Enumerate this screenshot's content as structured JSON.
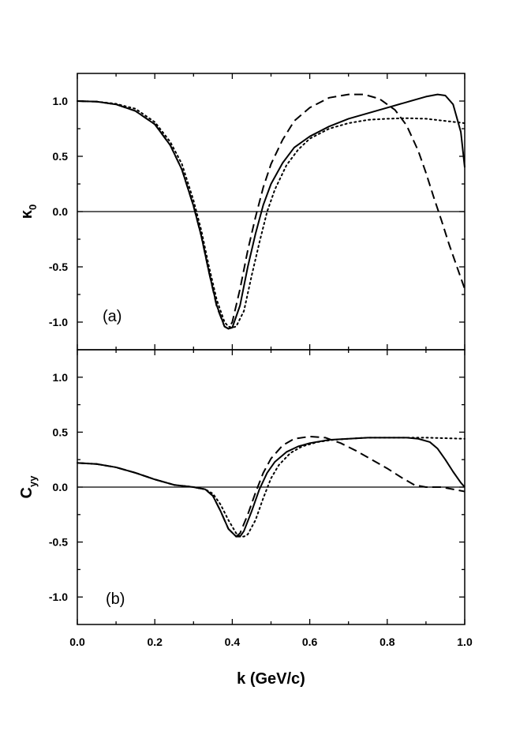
{
  "chart_data": [
    {
      "type": "line",
      "panel_label": "(a)",
      "ylabel_main": "κ",
      "ylabel_sub": "0",
      "xlabel": "",
      "xlim": [
        0.0,
        1.0
      ],
      "ylim": [
        -1.25,
        1.25
      ],
      "x_ticks": [
        "0.0",
        "0.2",
        "0.4",
        "0.6",
        "0.8",
        "1.0"
      ],
      "y_ticks": [
        "-1.0",
        "-0.5",
        "0.0",
        "0.5",
        "1.0"
      ],
      "reference_line_y": 0.0,
      "series": [
        {
          "style": "solid",
          "points": [
            [
              0.0,
              1.0
            ],
            [
              0.05,
              0.995
            ],
            [
              0.1,
              0.97
            ],
            [
              0.15,
              0.91
            ],
            [
              0.2,
              0.79
            ],
            [
              0.24,
              0.6
            ],
            [
              0.27,
              0.38
            ],
            [
              0.3,
              0.05
            ],
            [
              0.32,
              -0.22
            ],
            [
              0.34,
              -0.55
            ],
            [
              0.36,
              -0.85
            ],
            [
              0.38,
              -1.04
            ],
            [
              0.39,
              -1.06
            ],
            [
              0.4,
              -1.05
            ],
            [
              0.42,
              -0.85
            ],
            [
              0.44,
              -0.5
            ],
            [
              0.46,
              -0.2
            ],
            [
              0.48,
              0.06
            ],
            [
              0.5,
              0.25
            ],
            [
              0.53,
              0.44
            ],
            [
              0.56,
              0.58
            ],
            [
              0.6,
              0.68
            ],
            [
              0.65,
              0.77
            ],
            [
              0.7,
              0.84
            ],
            [
              0.75,
              0.89
            ],
            [
              0.8,
              0.94
            ],
            [
              0.85,
              0.99
            ],
            [
              0.9,
              1.04
            ],
            [
              0.93,
              1.06
            ],
            [
              0.95,
              1.05
            ],
            [
              0.97,
              0.97
            ],
            [
              0.99,
              0.72
            ],
            [
              1.0,
              0.4
            ]
          ]
        },
        {
          "style": "dashed",
          "points": [
            [
              0.0,
              1.0
            ],
            [
              0.05,
              0.995
            ],
            [
              0.1,
              0.97
            ],
            [
              0.15,
              0.91
            ],
            [
              0.2,
              0.79
            ],
            [
              0.24,
              0.6
            ],
            [
              0.27,
              0.38
            ],
            [
              0.3,
              0.05
            ],
            [
              0.32,
              -0.22
            ],
            [
              0.34,
              -0.55
            ],
            [
              0.36,
              -0.86
            ],
            [
              0.38,
              -1.04
            ],
            [
              0.39,
              -1.06
            ],
            [
              0.4,
              -1.0
            ],
            [
              0.42,
              -0.7
            ],
            [
              0.44,
              -0.35
            ],
            [
              0.46,
              -0.05
            ],
            [
              0.48,
              0.22
            ],
            [
              0.5,
              0.43
            ],
            [
              0.53,
              0.65
            ],
            [
              0.56,
              0.82
            ],
            [
              0.6,
              0.94
            ],
            [
              0.65,
              1.03
            ],
            [
              0.7,
              1.06
            ],
            [
              0.74,
              1.06
            ],
            [
              0.78,
              1.02
            ],
            [
              0.82,
              0.92
            ],
            [
              0.85,
              0.78
            ],
            [
              0.88,
              0.55
            ],
            [
              0.9,
              0.35
            ],
            [
              0.92,
              0.13
            ],
            [
              0.94,
              -0.08
            ],
            [
              0.96,
              -0.3
            ],
            [
              0.98,
              -0.5
            ],
            [
              1.0,
              -0.7
            ]
          ]
        },
        {
          "style": "dotted",
          "points": [
            [
              0.0,
              1.0
            ],
            [
              0.05,
              0.995
            ],
            [
              0.1,
              0.975
            ],
            [
              0.15,
              0.93
            ],
            [
              0.2,
              0.81
            ],
            [
              0.24,
              0.63
            ],
            [
              0.27,
              0.43
            ],
            [
              0.3,
              0.1
            ],
            [
              0.32,
              -0.17
            ],
            [
              0.34,
              -0.5
            ],
            [
              0.36,
              -0.8
            ],
            [
              0.38,
              -1.0
            ],
            [
              0.39,
              -1.04
            ],
            [
              0.4,
              -1.05
            ],
            [
              0.41,
              -1.04
            ],
            [
              0.43,
              -0.9
            ],
            [
              0.45,
              -0.58
            ],
            [
              0.47,
              -0.28
            ],
            [
              0.49,
              0.0
            ],
            [
              0.51,
              0.2
            ],
            [
              0.54,
              0.42
            ],
            [
              0.57,
              0.56
            ],
            [
              0.6,
              0.66
            ],
            [
              0.65,
              0.75
            ],
            [
              0.7,
              0.8
            ],
            [
              0.75,
              0.83
            ],
            [
              0.8,
              0.84
            ],
            [
              0.85,
              0.845
            ],
            [
              0.9,
              0.84
            ],
            [
              0.95,
              0.82
            ],
            [
              1.0,
              0.8
            ]
          ]
        }
      ]
    },
    {
      "type": "line",
      "panel_label": "(b)",
      "ylabel_main": "C",
      "ylabel_sub": "yy",
      "xlabel": "k (GeV/c)",
      "xlim": [
        0.0,
        1.0
      ],
      "ylim": [
        -1.25,
        1.25
      ],
      "x_ticks": [
        "0.0",
        "0.2",
        "0.4",
        "0.6",
        "0.8",
        "1.0"
      ],
      "y_ticks": [
        "-1.0",
        "-0.5",
        "0.0",
        "0.5",
        "1.0"
      ],
      "reference_line_y": 0.0,
      "series": [
        {
          "style": "solid",
          "points": [
            [
              0.0,
              0.22
            ],
            [
              0.05,
              0.21
            ],
            [
              0.1,
              0.18
            ],
            [
              0.15,
              0.13
            ],
            [
              0.2,
              0.07
            ],
            [
              0.25,
              0.02
            ],
            [
              0.3,
              0.0
            ],
            [
              0.33,
              -0.02
            ],
            [
              0.35,
              -0.08
            ],
            [
              0.37,
              -0.22
            ],
            [
              0.39,
              -0.38
            ],
            [
              0.41,
              -0.45
            ],
            [
              0.42,
              -0.45
            ],
            [
              0.43,
              -0.4
            ],
            [
              0.45,
              -0.22
            ],
            [
              0.47,
              -0.02
            ],
            [
              0.49,
              0.13
            ],
            [
              0.51,
              0.23
            ],
            [
              0.54,
              0.32
            ],
            [
              0.57,
              0.37
            ],
            [
              0.6,
              0.4
            ],
            [
              0.65,
              0.43
            ],
            [
              0.7,
              0.44
            ],
            [
              0.75,
              0.45
            ],
            [
              0.8,
              0.45
            ],
            [
              0.85,
              0.45
            ],
            [
              0.88,
              0.44
            ],
            [
              0.91,
              0.41
            ],
            [
              0.93,
              0.35
            ],
            [
              0.95,
              0.25
            ],
            [
              0.97,
              0.14
            ],
            [
              0.99,
              0.04
            ],
            [
              1.0,
              0.0
            ]
          ]
        },
        {
          "style": "dashed",
          "points": [
            [
              0.0,
              0.22
            ],
            [
              0.05,
              0.21
            ],
            [
              0.1,
              0.18
            ],
            [
              0.15,
              0.13
            ],
            [
              0.2,
              0.07
            ],
            [
              0.25,
              0.02
            ],
            [
              0.3,
              0.0
            ],
            [
              0.33,
              -0.02
            ],
            [
              0.35,
              -0.08
            ],
            [
              0.37,
              -0.22
            ],
            [
              0.39,
              -0.38
            ],
            [
              0.41,
              -0.45
            ],
            [
              0.42,
              -0.42
            ],
            [
              0.44,
              -0.25
            ],
            [
              0.46,
              -0.05
            ],
            [
              0.48,
              0.13
            ],
            [
              0.5,
              0.26
            ],
            [
              0.53,
              0.38
            ],
            [
              0.56,
              0.44
            ],
            [
              0.6,
              0.46
            ],
            [
              0.64,
              0.45
            ],
            [
              0.68,
              0.4
            ],
            [
              0.72,
              0.33
            ],
            [
              0.76,
              0.25
            ],
            [
              0.8,
              0.17
            ],
            [
              0.84,
              0.08
            ],
            [
              0.87,
              0.02
            ],
            [
              0.9,
              0.0
            ],
            [
              0.94,
              0.0
            ],
            [
              0.97,
              -0.02
            ],
            [
              1.0,
              -0.04
            ]
          ]
        },
        {
          "style": "dotted",
          "points": [
            [
              0.0,
              0.22
            ],
            [
              0.05,
              0.21
            ],
            [
              0.1,
              0.18
            ],
            [
              0.15,
              0.13
            ],
            [
              0.2,
              0.07
            ],
            [
              0.25,
              0.02
            ],
            [
              0.3,
              0.0
            ],
            [
              0.33,
              -0.02
            ],
            [
              0.35,
              -0.06
            ],
            [
              0.37,
              -0.16
            ],
            [
              0.39,
              -0.3
            ],
            [
              0.41,
              -0.42
            ],
            [
              0.42,
              -0.45
            ],
            [
              0.43,
              -0.45
            ],
            [
              0.44,
              -0.43
            ],
            [
              0.46,
              -0.3
            ],
            [
              0.48,
              -0.1
            ],
            [
              0.5,
              0.08
            ],
            [
              0.52,
              0.2
            ],
            [
              0.55,
              0.31
            ],
            [
              0.58,
              0.37
            ],
            [
              0.62,
              0.41
            ],
            [
              0.66,
              0.43
            ],
            [
              0.7,
              0.44
            ],
            [
              0.75,
              0.45
            ],
            [
              0.8,
              0.45
            ],
            [
              0.85,
              0.45
            ],
            [
              0.9,
              0.45
            ],
            [
              0.95,
              0.445
            ],
            [
              1.0,
              0.44
            ]
          ]
        }
      ]
    }
  ]
}
